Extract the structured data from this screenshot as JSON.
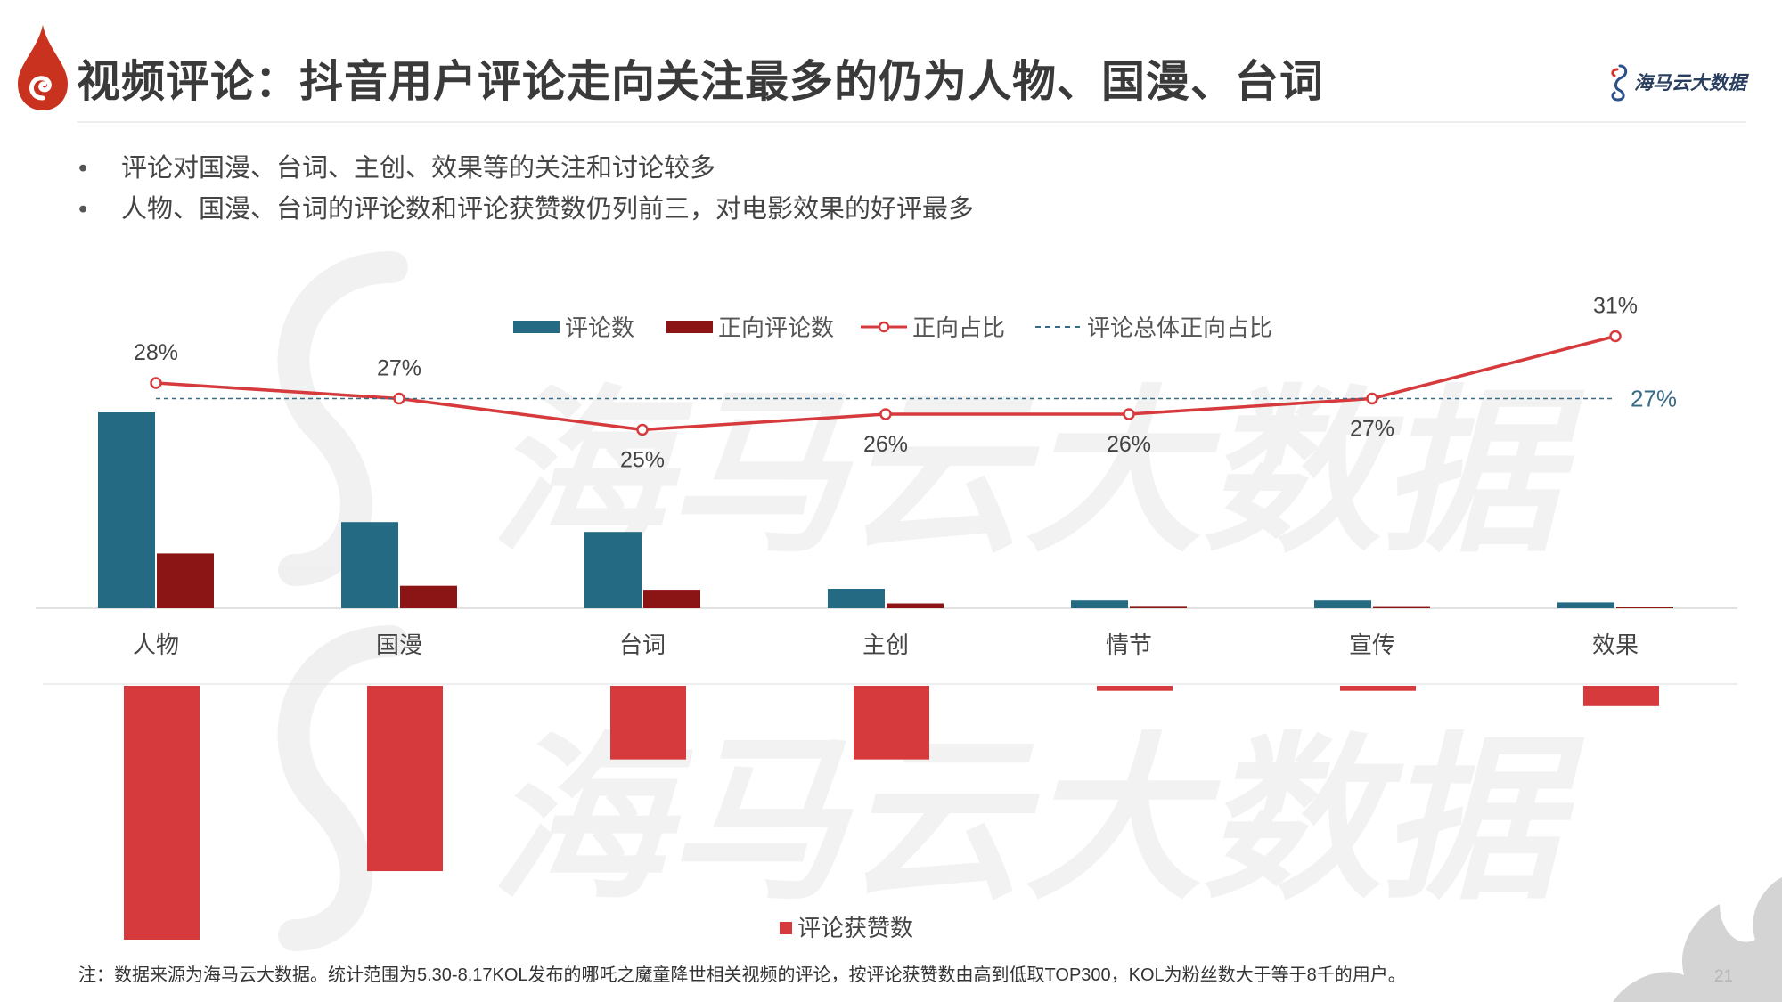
{
  "header": {
    "title": "视频评论：抖音用户评论走向关注最多的仍为人物、国漫、台词",
    "brand": "海马云大数据"
  },
  "bullets": [
    "评论对国漫、台词、主创、效果等的关注和讨论较多",
    "人物、国漫、台词的评论数和评论获赞数仍列前三，对电影效果的好评最多"
  ],
  "watermark_text": "海马云大数据",
  "footnote": "注：数据来源为海马云大数据。统计范围为5.30-8.17KOL发布的哪吒之魔童降世相关视频的评论，按评论获赞数由高到低取TOP300，KOL为粉丝数大于等于8千的用户。",
  "page_number": "21",
  "colors": {
    "teal": "#236a82",
    "darkred": "#8b1414",
    "red": "#d63a3c",
    "avg": "#3a6b86"
  },
  "chart_data": [
    {
      "type": "bar+line",
      "categories": [
        "人物",
        "国漫",
        "台词",
        "主创",
        "情节",
        "宣传",
        "效果"
      ],
      "series": [
        {
          "name": "评论数",
          "values": [
            100,
            44,
            39,
            10,
            4,
            4,
            3
          ]
        },
        {
          "name": "正向评论数",
          "values": [
            28,
            11.5,
            9.5,
            2.5,
            1.2,
            1.1,
            0.9
          ]
        },
        {
          "name": "正向占比",
          "values": [
            28,
            27,
            25,
            26,
            26,
            27,
            31
          ],
          "labels": [
            "28%",
            "27%",
            "25%",
            "26%",
            "26%",
            "27%",
            "31%"
          ]
        }
      ],
      "reference_line": {
        "name": "评论总体正向占比",
        "value": 27,
        "label": "27%"
      },
      "bar_axis_max": 100,
      "ratio_axis_range": [
        0,
        100
      ],
      "legend_position": "top"
    },
    {
      "type": "bar",
      "orientation": "downward",
      "categories": [
        "人物",
        "国漫",
        "台词",
        "主创",
        "情节",
        "宣传",
        "效果"
      ],
      "series": [
        {
          "name": "评论获赞数",
          "values": [
            100,
            73,
            29,
            29,
            2,
            2,
            8
          ]
        }
      ],
      "axis_max": 100,
      "legend_position": "bottom"
    }
  ]
}
